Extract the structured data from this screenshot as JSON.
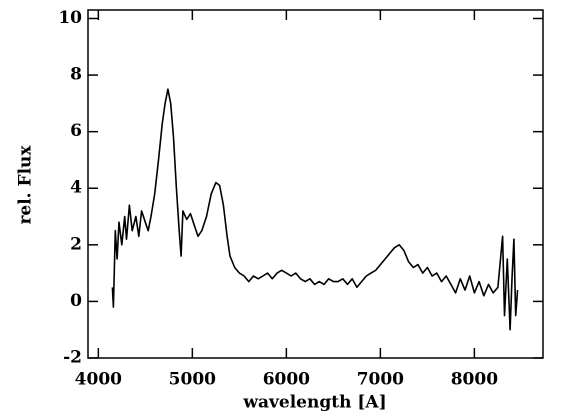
{
  "chart_data": {
    "type": "line",
    "xlabel": "wavelength [A]",
    "ylabel": "rel. Flux",
    "x": [
      4150,
      4160,
      4180,
      4200,
      4220,
      4250,
      4280,
      4300,
      4330,
      4360,
      4400,
      4430,
      4460,
      4500,
      4530,
      4560,
      4600,
      4640,
      4680,
      4710,
      4740,
      4770,
      4800,
      4830,
      4860,
      4880,
      4900,
      4940,
      4980,
      5020,
      5060,
      5100,
      5150,
      5200,
      5250,
      5290,
      5330,
      5370,
      5400,
      5450,
      5500,
      5550,
      5600,
      5650,
      5700,
      5750,
      5800,
      5850,
      5900,
      5950,
      6000,
      6050,
      6100,
      6150,
      6200,
      6250,
      6300,
      6350,
      6400,
      6450,
      6500,
      6550,
      6600,
      6650,
      6700,
      6750,
      6800,
      6850,
      6900,
      6950,
      7000,
      7050,
      7100,
      7150,
      7200,
      7250,
      7300,
      7350,
      7400,
      7450,
      7500,
      7550,
      7600,
      7650,
      7700,
      7750,
      7800,
      7850,
      7900,
      7950,
      8000,
      8050,
      8100,
      8150,
      8200,
      8250,
      8300,
      8320,
      8350,
      8380,
      8400,
      8420,
      8440,
      8460
    ],
    "series": [
      {
        "name": "flux",
        "color": "#000000",
        "values": [
          0.5,
          -0.2,
          2.5,
          1.5,
          2.8,
          2.0,
          3.0,
          2.2,
          3.4,
          2.5,
          3.0,
          2.3,
          3.2,
          2.8,
          2.5,
          3.0,
          3.8,
          5.0,
          6.3,
          7.0,
          7.5,
          7.0,
          5.8,
          4.0,
          2.5,
          1.6,
          3.2,
          2.9,
          3.1,
          2.7,
          2.3,
          2.5,
          3.0,
          3.8,
          4.2,
          4.1,
          3.4,
          2.3,
          1.6,
          1.2,
          1.0,
          0.9,
          0.7,
          0.9,
          0.8,
          0.9,
          1.0,
          0.8,
          1.0,
          1.1,
          1.0,
          0.9,
          1.0,
          0.8,
          0.7,
          0.8,
          0.6,
          0.7,
          0.6,
          0.8,
          0.7,
          0.7,
          0.8,
          0.6,
          0.8,
          0.5,
          0.7,
          0.9,
          1.0,
          1.1,
          1.3,
          1.5,
          1.7,
          1.9,
          2.0,
          1.8,
          1.4,
          1.2,
          1.3,
          1.0,
          1.2,
          0.9,
          1.0,
          0.7,
          0.9,
          0.6,
          0.3,
          0.8,
          0.4,
          0.9,
          0.3,
          0.7,
          0.2,
          0.6,
          0.3,
          0.5,
          2.3,
          -0.5,
          1.5,
          -1.0,
          0.8,
          2.2,
          -0.5,
          0.4
        ]
      }
    ],
    "xlim": [
      3890,
      8730
    ],
    "ylim": [
      -2,
      10.3
    ],
    "xticks": [
      4000,
      5000,
      6000,
      7000,
      8000
    ],
    "yticks": [
      -2,
      0,
      2,
      4,
      6,
      8,
      10
    ]
  }
}
